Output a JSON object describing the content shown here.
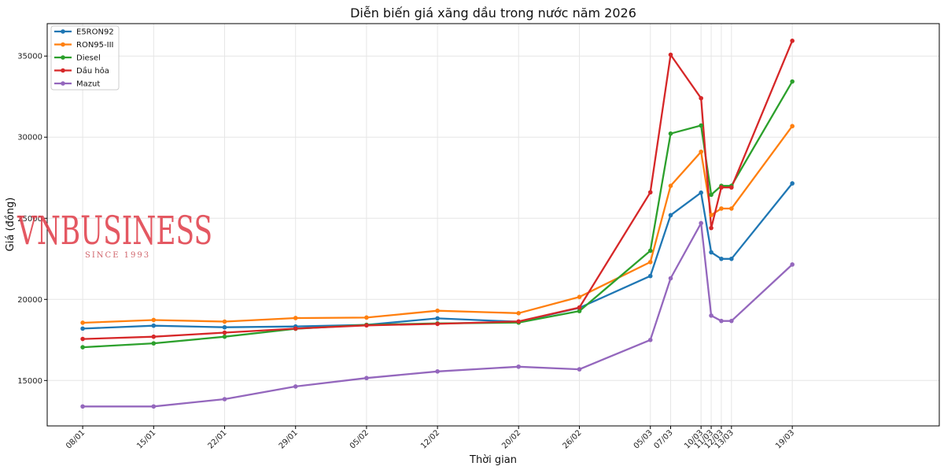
{
  "chart_data": {
    "type": "line",
    "title": "Diễn biến giá xăng dầu trong nước năm 2026",
    "xlabel": "Thời gian",
    "ylabel": "Giá (đồng)",
    "ylim": [
      12200,
      37000
    ],
    "yticks": [
      15000,
      20000,
      25000,
      30000,
      35000
    ],
    "grid": true,
    "legend_position": "top-left",
    "x_day_range": [
      -3.5,
      84.5
    ],
    "x": [
      {
        "label": "08/01",
        "day": 0
      },
      {
        "label": "15/01",
        "day": 7
      },
      {
        "label": "22/01",
        "day": 14
      },
      {
        "label": "29/01",
        "day": 21
      },
      {
        "label": "05/02",
        "day": 28
      },
      {
        "label": "12/02",
        "day": 35
      },
      {
        "label": "20/02",
        "day": 43
      },
      {
        "label": "26/02",
        "day": 49
      },
      {
        "label": "05/03",
        "day": 56
      },
      {
        "label": "07/03",
        "day": 58
      },
      {
        "label": "10/03",
        "day": 61
      },
      {
        "label": "11/03",
        "day": 62
      },
      {
        "label": "12/03",
        "day": 63
      },
      {
        "label": "13/03",
        "day": 64
      },
      {
        "label": "19/03",
        "day": 70
      }
    ],
    "series": [
      {
        "name": "E5RON92",
        "color": "#1f77b4",
        "values": [
          18200,
          18380,
          18280,
          18330,
          18430,
          18830,
          18620,
          19480,
          21440,
          25190,
          26580,
          22900,
          22500,
          22500,
          27150
        ]
      },
      {
        "name": "RON95-III",
        "color": "#ff7f0e",
        "values": [
          18560,
          18730,
          18630,
          18850,
          18880,
          19300,
          19150,
          20150,
          22300,
          27000,
          29100,
          25200,
          25600,
          25600,
          30680
        ]
      },
      {
        "name": "Diesel",
        "color": "#2ca02c",
        "values": [
          17050,
          17290,
          17700,
          18190,
          18430,
          18520,
          18570,
          19280,
          23000,
          30220,
          30720,
          26450,
          27000,
          27000,
          33430
        ]
      },
      {
        "name": "Dầu hỏa",
        "color": "#d62728",
        "values": [
          17560,
          17700,
          17950,
          18200,
          18400,
          18490,
          18640,
          19500,
          26600,
          35080,
          32400,
          24400,
          26900,
          26900,
          35940
        ]
      },
      {
        "name": "Mazut",
        "color": "#9467bd",
        "values": [
          13400,
          13400,
          13850,
          14630,
          15150,
          15560,
          15850,
          15690,
          17500,
          21300,
          24700,
          19000,
          18670,
          18670,
          22150
        ]
      }
    ]
  },
  "watermark": {
    "brand": "VNBUSINESS",
    "tagline": "SINCE 1993"
  }
}
